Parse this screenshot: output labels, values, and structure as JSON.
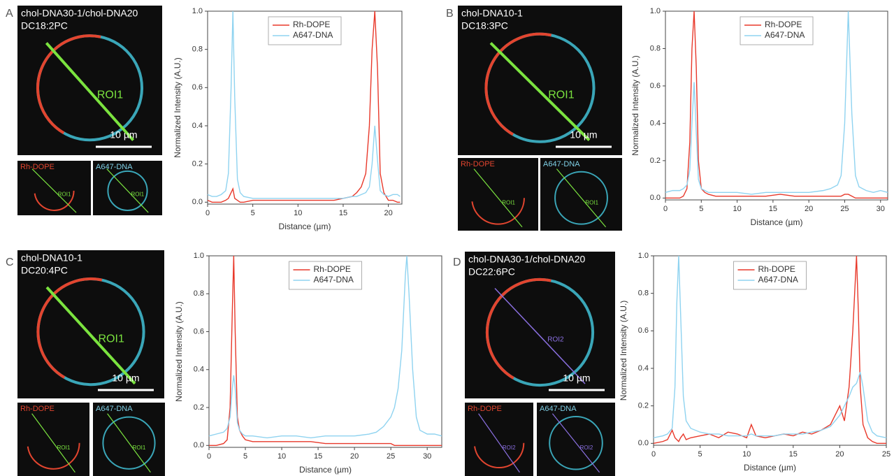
{
  "panels": [
    {
      "letter": "A",
      "image_labels": [
        "chol-DNA30-1/chol-DNA20",
        "DC18:2PC"
      ],
      "roi": "ROI1",
      "scale_bar": "10 µm",
      "insets": [
        "Rh-DOPE",
        "A647-DNA"
      ],
      "inset_roi": "ROI1"
    },
    {
      "letter": "B",
      "image_labels": [
        "chol-DNA10-1",
        "DC18:3PC"
      ],
      "roi": "ROI1",
      "scale_bar": "10 µm",
      "insets": [
        "Rh-DOPE",
        "A647-DNA"
      ],
      "inset_roi": "ROI1"
    },
    {
      "letter": "C",
      "image_labels": [
        "chol-DNA10-1",
        "DC20:4PC"
      ],
      "roi": "ROI1",
      "scale_bar": "10 µm",
      "insets": [
        "Rh-DOPE",
        "A647-DNA"
      ],
      "inset_roi": "ROI1"
    },
    {
      "letter": "D",
      "image_labels": [
        "chol-DNA30-1/chol-DNA20",
        "DC22:6PC"
      ],
      "roi": "ROI2",
      "scale_bar": "10 µm",
      "insets": [
        "Rh-DOPE",
        "A647-DNA"
      ],
      "inset_roi": "ROI2"
    }
  ],
  "chart_data": [
    {
      "type": "line",
      "x_label": "Distance (µm)",
      "y_label": "Normalized Intensity (A.U.)",
      "legend": "upper center",
      "xlim": [
        0,
        21.5
      ],
      "xticks": [
        0,
        5,
        10,
        15,
        20
      ],
      "ylim": [
        -0.01,
        1.0
      ],
      "yticks": [
        {
          "value": 0,
          "label": "0.0"
        },
        0.2,
        0.4,
        0.6,
        0.8,
        {
          "value": 1,
          "label": "1.0"
        }
      ],
      "x": [
        0,
        0.5,
        1,
        1.5,
        2,
        2.3,
        2.6,
        2.8,
        3.0,
        3.3,
        3.6,
        4,
        5,
        6,
        7,
        8,
        9,
        10,
        11,
        12,
        13,
        14,
        15,
        16,
        16.5,
        17,
        17.5,
        17.9,
        18.2,
        18.5,
        18.8,
        19.1,
        19.5,
        20,
        20.5,
        21,
        21.3
      ],
      "series": [
        {
          "name": "Rh-DOPE",
          "color": "#e8392b",
          "values": [
            0.01,
            0,
            0,
            0,
            0.01,
            0.02,
            0.05,
            0.07,
            0.02,
            0.01,
            0,
            0,
            0.01,
            0.01,
            0.01,
            0.01,
            0.01,
            0.01,
            0.01,
            0.01,
            0.01,
            0.01,
            0.02,
            0.03,
            0.05,
            0.08,
            0.15,
            0.4,
            0.8,
            1.0,
            0.7,
            0.15,
            0.05,
            0.01,
            0.01,
            0,
            0
          ]
        },
        {
          "name": "A647-DNA",
          "color": "#8fd3f0",
          "values": [
            0.04,
            0.03,
            0.03,
            0.04,
            0.06,
            0.15,
            0.6,
            1.0,
            0.55,
            0.12,
            0.05,
            0.03,
            0.02,
            0.02,
            0.02,
            0.02,
            0.02,
            0.02,
            0.02,
            0.02,
            0.02,
            0.02,
            0.02,
            0.03,
            0.03,
            0.04,
            0.05,
            0.08,
            0.2,
            0.4,
            0.22,
            0.06,
            0.04,
            0.03,
            0.04,
            0.04,
            0.03
          ]
        }
      ]
    },
    {
      "type": "line",
      "x_label": "Distance (µm)",
      "y_label": "Normalized Intensity (A.U.)",
      "legend": "upper center",
      "xlim": [
        0,
        31
      ],
      "xticks": [
        0,
        5,
        10,
        15,
        20,
        25,
        30
      ],
      "ylim": [
        -0.01,
        1.0
      ],
      "yticks": [
        {
          "value": 0,
          "label": "0.0"
        },
        0.2,
        0.4,
        0.6,
        0.8,
        {
          "value": 1,
          "label": "1.0"
        }
      ],
      "x": [
        0,
        1,
        2,
        2.5,
        3,
        3.4,
        3.7,
        4.0,
        4.3,
        4.6,
        5,
        5.5,
        6,
        7,
        8,
        10,
        12,
        14,
        16,
        18,
        20,
        22,
        23,
        24,
        24.5,
        25,
        25.5,
        26,
        26.5,
        27,
        28,
        29,
        30,
        31
      ],
      "series": [
        {
          "name": "Rh-DOPE",
          "color": "#e8392b",
          "values": [
            0,
            0,
            0,
            0.01,
            0.05,
            0.3,
            0.8,
            1.0,
            0.7,
            0.2,
            0.05,
            0.03,
            0.02,
            0.01,
            0.01,
            0.01,
            0.01,
            0.01,
            0.02,
            0.01,
            0.01,
            0.01,
            0.01,
            0.01,
            0.01,
            0.02,
            0.02,
            0.01,
            0,
            0,
            0,
            0,
            0,
            0
          ]
        },
        {
          "name": "A647-DNA",
          "color": "#8fd3f0",
          "values": [
            0.03,
            0.04,
            0.04,
            0.05,
            0.07,
            0.15,
            0.4,
            0.62,
            0.35,
            0.1,
            0.05,
            0.04,
            0.03,
            0.03,
            0.03,
            0.03,
            0.02,
            0.03,
            0.03,
            0.03,
            0.03,
            0.04,
            0.05,
            0.07,
            0.12,
            0.4,
            1.0,
            0.45,
            0.12,
            0.06,
            0.04,
            0.03,
            0.04,
            0.03
          ]
        }
      ]
    },
    {
      "type": "line",
      "x_label": "Distance (µm)",
      "y_label": "Normalized Intensity (A.U.)",
      "legend": "upper center",
      "xlim": [
        0,
        32
      ],
      "xticks": [
        0,
        5,
        10,
        15,
        20,
        25,
        30
      ],
      "ylim": [
        -0.01,
        1.0
      ],
      "yticks": [
        {
          "value": 0,
          "label": "0.0"
        },
        0.2,
        0.4,
        0.6,
        0.8,
        {
          "value": 1,
          "label": "1.0"
        }
      ],
      "x": [
        0,
        1,
        2,
        2.5,
        2.9,
        3.2,
        3.4,
        3.6,
        3.9,
        4.2,
        4.6,
        5,
        6,
        8,
        10,
        12,
        14,
        16,
        18,
        20,
        22,
        23,
        24,
        25,
        25.5,
        26,
        26.5,
        27,
        27.2,
        27.5,
        28,
        28.5,
        29,
        30,
        31,
        32
      ],
      "series": [
        {
          "name": "Rh-DOPE",
          "color": "#e8392b",
          "values": [
            0,
            0,
            0.01,
            0.03,
            0.2,
            0.7,
            1.0,
            0.6,
            0.15,
            0.08,
            0.05,
            0.03,
            0.02,
            0.02,
            0.02,
            0.02,
            0.02,
            0.01,
            0.01,
            0.01,
            0.01,
            0.01,
            0.01,
            0.01,
            0,
            0,
            0,
            0,
            0,
            0,
            0,
            0,
            0,
            0,
            0,
            0
          ]
        },
        {
          "name": "A647-DNA",
          "color": "#8fd3f0",
          "values": [
            0.05,
            0.06,
            0.07,
            0.09,
            0.15,
            0.3,
            0.37,
            0.3,
            0.12,
            0.08,
            0.06,
            0.05,
            0.05,
            0.04,
            0.05,
            0.05,
            0.04,
            0.05,
            0.05,
            0.05,
            0.06,
            0.07,
            0.1,
            0.15,
            0.2,
            0.3,
            0.5,
            0.9,
            1.0,
            0.8,
            0.4,
            0.15,
            0.08,
            0.06,
            0.06,
            0.05
          ]
        }
      ]
    },
    {
      "type": "line",
      "x_label": "Distance (µm)",
      "y_label": "Normalized Intensity (A.U.)",
      "legend": "upper center",
      "xlim": [
        0,
        25
      ],
      "xticks": [
        0,
        5,
        10,
        15,
        20,
        25
      ],
      "ylim": [
        -0.01,
        1.0
      ],
      "yticks": [
        {
          "value": 0,
          "label": "0.0"
        },
        0.2,
        0.4,
        0.6,
        0.8,
        {
          "value": 1,
          "label": "1.0"
        }
      ],
      "x": [
        0,
        1,
        1.5,
        2,
        2.3,
        2.5,
        2.7,
        2.9,
        3.2,
        3.5,
        4,
        5,
        6,
        7,
        8,
        9,
        10,
        10.5,
        11,
        12,
        13,
        14,
        15,
        16,
        17,
        18,
        19,
        19.5,
        20,
        20.5,
        21,
        21.4,
        21.8,
        22.0,
        22.2,
        22.5,
        23,
        23.5,
        24,
        25
      ],
      "series": [
        {
          "name": "Rh-DOPE",
          "color": "#e8392b",
          "values": [
            0,
            0.01,
            0.02,
            0.07,
            0.03,
            0.02,
            0.01,
            0.03,
            0.05,
            0.02,
            0.03,
            0.04,
            0.05,
            0.03,
            0.06,
            0.05,
            0.03,
            0.1,
            0.04,
            0.03,
            0.04,
            0.05,
            0.04,
            0.06,
            0.05,
            0.07,
            0.1,
            0.15,
            0.2,
            0.12,
            0.3,
            0.6,
            1.0,
            0.7,
            0.3,
            0.1,
            0.03,
            0.01,
            0,
            0
          ]
        },
        {
          "name": "A647-DNA",
          "color": "#8fd3f0",
          "values": [
            0.03,
            0.04,
            0.05,
            0.08,
            0.3,
            0.75,
            1.0,
            0.7,
            0.25,
            0.12,
            0.08,
            0.06,
            0.05,
            0.05,
            0.04,
            0.04,
            0.04,
            0.05,
            0.04,
            0.04,
            0.04,
            0.05,
            0.05,
            0.05,
            0.06,
            0.07,
            0.09,
            0.12,
            0.15,
            0.2,
            0.25,
            0.3,
            0.32,
            0.35,
            0.38,
            0.3,
            0.12,
            0.06,
            0.04,
            0.03
          ]
        }
      ]
    }
  ]
}
